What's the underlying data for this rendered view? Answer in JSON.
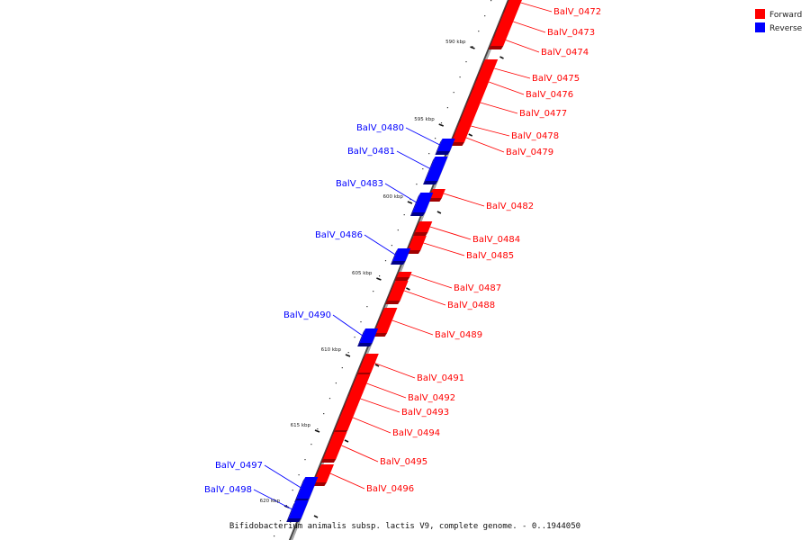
{
  "legend": [
    {
      "label": "Forward",
      "color": "#ff0000"
    },
    {
      "label": "Reverse",
      "color": "#0000ff"
    }
  ],
  "colors": {
    "forward": "#ff0000",
    "reverse": "#0000ff",
    "forward_dark": "#a00000",
    "reverse_dark": "#00008a",
    "axis": "#888888"
  },
  "caption": "Bifidobacterium animalis subsp. lactis V9, complete genome. - 0..1944050",
  "scale_labels": [
    "590 kbp",
    "595 kbp",
    "600 kbp",
    "605 kbp",
    "610 kbp",
    "615 kbp",
    "620 kbp"
  ],
  "genes": [
    {
      "name": "BalV_0472",
      "strand": "forward"
    },
    {
      "name": "BalV_0473",
      "strand": "forward"
    },
    {
      "name": "BalV_0474",
      "strand": "forward"
    },
    {
      "name": "BalV_0475",
      "strand": "forward"
    },
    {
      "name": "BalV_0476",
      "strand": "forward"
    },
    {
      "name": "BalV_0477",
      "strand": "forward"
    },
    {
      "name": "BalV_0478",
      "strand": "forward"
    },
    {
      "name": "BalV_0479",
      "strand": "forward"
    },
    {
      "name": "BalV_0480",
      "strand": "reverse"
    },
    {
      "name": "BalV_0481",
      "strand": "reverse"
    },
    {
      "name": "BalV_0482",
      "strand": "forward"
    },
    {
      "name": "BalV_0483",
      "strand": "reverse"
    },
    {
      "name": "BalV_0484",
      "strand": "forward"
    },
    {
      "name": "BalV_0485",
      "strand": "forward"
    },
    {
      "name": "BalV_0486",
      "strand": "reverse"
    },
    {
      "name": "BalV_0487",
      "strand": "forward"
    },
    {
      "name": "BalV_0488",
      "strand": "forward"
    },
    {
      "name": "BalV_0489",
      "strand": "forward"
    },
    {
      "name": "BalV_0490",
      "strand": "reverse"
    },
    {
      "name": "BalV_0491",
      "strand": "forward"
    },
    {
      "name": "BalV_0492",
      "strand": "forward"
    },
    {
      "name": "BalV_0493",
      "strand": "forward"
    },
    {
      "name": "BalV_0494",
      "strand": "forward"
    },
    {
      "name": "BalV_0495",
      "strand": "forward"
    },
    {
      "name": "BalV_0496",
      "strand": "forward"
    },
    {
      "name": "BalV_0497",
      "strand": "reverse"
    },
    {
      "name": "BalV_0498",
      "strand": "reverse"
    }
  ]
}
